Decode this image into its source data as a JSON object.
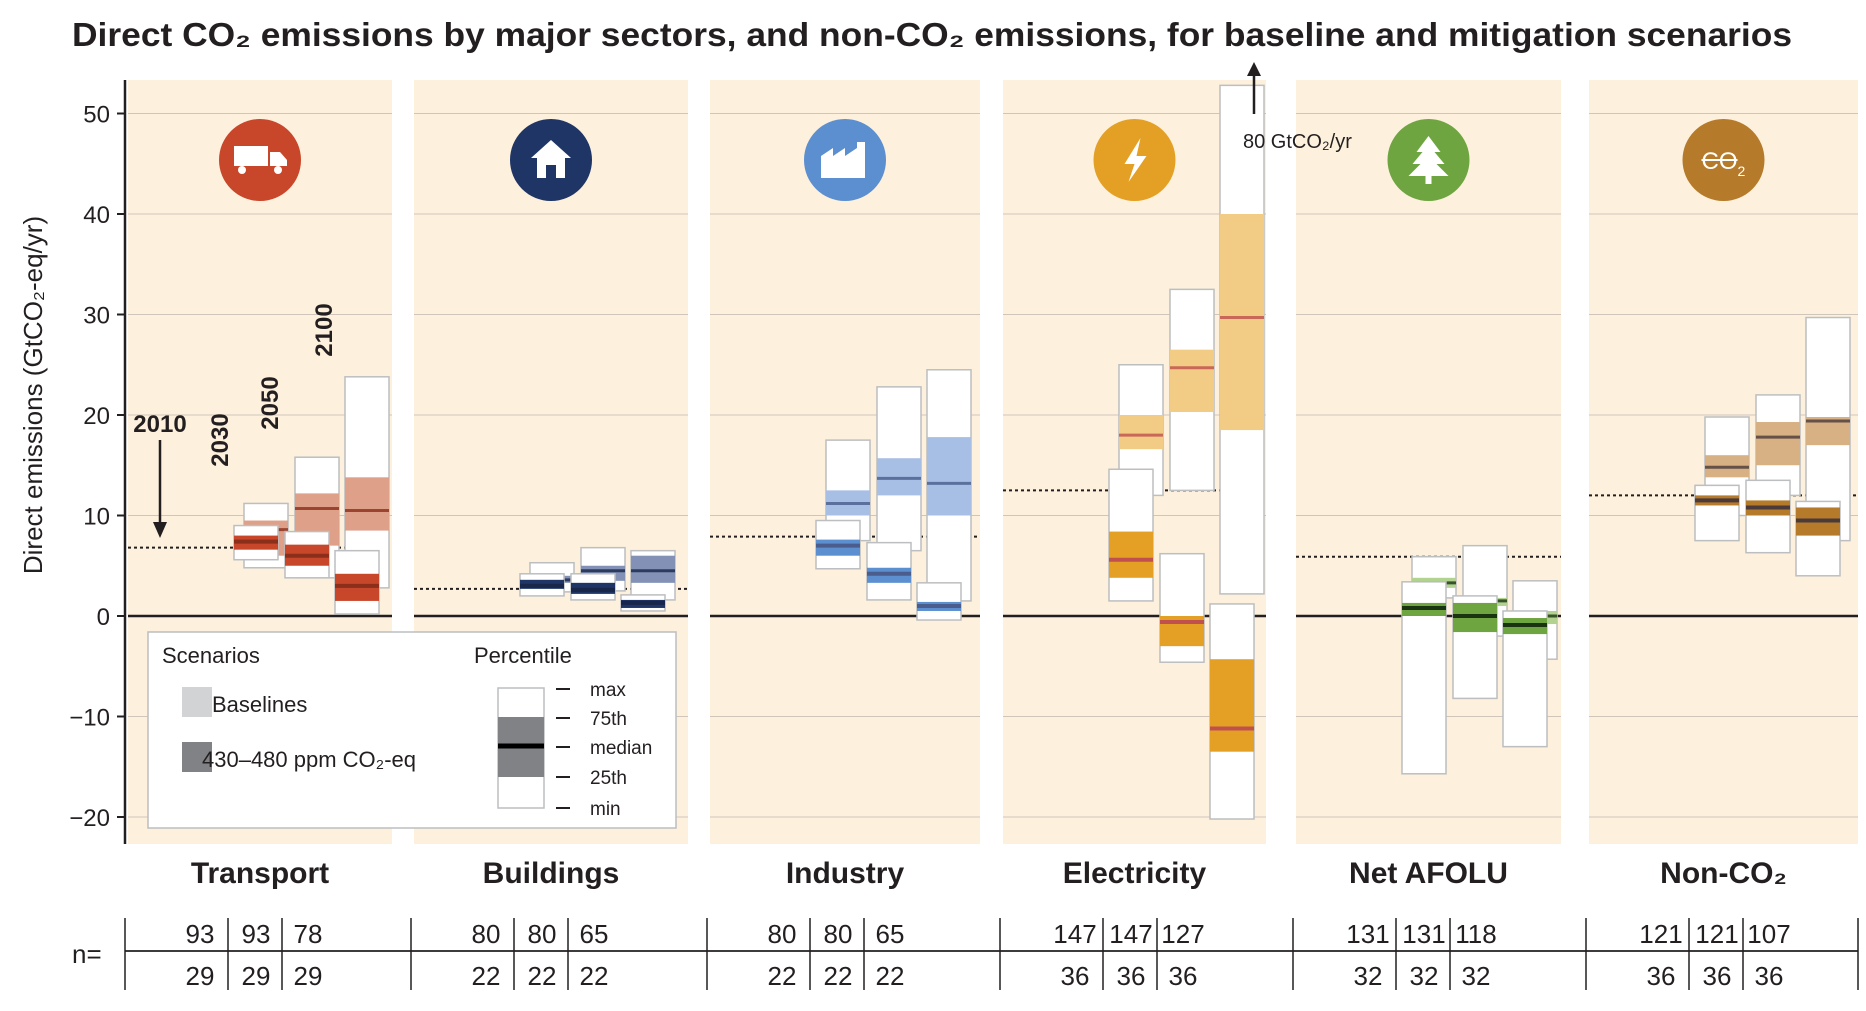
{
  "chart_data": {
    "type": "boxplot",
    "title": "Direct CO₂ emissions by major sectors, and non-CO₂ emissions, for baseline and mitigation scenarios",
    "ylabel": "Direct emissions (GtCO₂-eq/yr)",
    "ylim": [
      -22,
      53
    ],
    "yticks": [
      50,
      40,
      30,
      20,
      10,
      0,
      -10,
      -20
    ],
    "years": [
      "2010",
      "2030",
      "2050",
      "2100"
    ],
    "off_scale_note": "80 GtCO₂/yr",
    "n_label": "n=",
    "sectors": [
      {
        "name": "Transport",
        "icon": "truck-icon",
        "color": "#c8462a",
        "light": "#dfa08a",
        "line": "#8b2e1a",
        "y2010": 6.8,
        "n_baseline": [
          "93",
          "93",
          "78"
        ],
        "n_mitigation": [
          "29",
          "29",
          "29"
        ],
        "baseline": [
          [
            4.8,
            6.0,
            8.6,
            9.5,
            11.2
          ],
          [
            3.8,
            7.0,
            10.7,
            12.2,
            15.8
          ],
          [
            2.8,
            8.5,
            10.5,
            13.8,
            23.8
          ]
        ],
        "mitigation": [
          [
            5.6,
            6.6,
            7.4,
            8.0,
            9.0
          ],
          [
            3.8,
            5.0,
            6.0,
            7.1,
            8.4
          ],
          [
            0.2,
            1.5,
            3.0,
            4.2,
            6.5
          ]
        ]
      },
      {
        "name": "Buildings",
        "icon": "house-icon",
        "color": "#1e3565",
        "light": "#8291b5",
        "line": "#18264a",
        "y2010": 2.7,
        "n_baseline": [
          "80",
          "80",
          "65"
        ],
        "n_mitigation": [
          "22",
          "22",
          "22"
        ],
        "baseline": [
          [
            2.4,
            3.3,
            3.6,
            4.0,
            5.3
          ],
          [
            2.5,
            3.5,
            4.5,
            5.0,
            6.8
          ],
          [
            1.6,
            3.3,
            4.5,
            6.0,
            6.5
          ]
        ],
        "mitigation": [
          [
            2.0,
            2.7,
            3.0,
            3.6,
            4.2
          ],
          [
            1.6,
            2.2,
            2.6,
            3.3,
            4.2
          ],
          [
            0.5,
            0.8,
            1.3,
            1.6,
            2.1
          ]
        ]
      },
      {
        "name": "Industry",
        "icon": "factory-icon",
        "color": "#5b8fd0",
        "light": "#a7bfe4",
        "line": "#4a5d8c",
        "y2010": 7.9,
        "n_baseline": [
          "80",
          "80",
          "65"
        ],
        "n_mitigation": [
          "22",
          "22",
          "22"
        ],
        "baseline": [
          [
            7.5,
            10.0,
            11.2,
            12.5,
            17.5
          ],
          [
            6.5,
            12.0,
            13.7,
            15.7,
            22.8
          ],
          [
            1.5,
            10.0,
            13.2,
            17.8,
            24.5
          ]
        ],
        "mitigation": [
          [
            4.7,
            6.0,
            7.0,
            7.6,
            9.5
          ],
          [
            1.6,
            3.3,
            4.2,
            4.8,
            7.3
          ],
          [
            -0.4,
            0.5,
            1.0,
            1.4,
            3.3
          ]
        ]
      },
      {
        "name": "Electricity",
        "icon": "lightning-icon",
        "color": "#e3a025",
        "light": "#f2cc85",
        "line": "#c0504d",
        "y2010": 12.5,
        "n_baseline": [
          "147",
          "147",
          "127"
        ],
        "n_mitigation": [
          "36",
          "36",
          "36"
        ],
        "baseline": [
          [
            12.0,
            16.6,
            18.0,
            20.0,
            25.0
          ],
          [
            12.5,
            20.3,
            24.7,
            26.5,
            32.5
          ],
          [
            2.2,
            18.5,
            29.7,
            40.0,
            80.0
          ]
        ],
        "mitigation": [
          [
            1.5,
            3.8,
            5.6,
            8.4,
            14.6
          ],
          [
            -4.6,
            -3.0,
            -0.6,
            0.0,
            6.2
          ],
          [
            -20.2,
            -13.5,
            -11.2,
            -4.3,
            1.2
          ]
        ]
      },
      {
        "name": "Net AFOLU",
        "icon": "tree-icon",
        "color": "#6ea541",
        "light": "#b2d38f",
        "line": "#1a3310",
        "y2010": 5.9,
        "n_baseline": [
          "131",
          "131",
          "118"
        ],
        "n_mitigation": [
          "32",
          "32",
          "32"
        ],
        "baseline": [
          [
            1.8,
            2.8,
            3.3,
            3.8,
            5.9
          ],
          [
            -2.0,
            1.0,
            1.5,
            1.8,
            7.0
          ],
          [
            -4.3,
            -0.8,
            0.0,
            0.5,
            3.5
          ]
        ],
        "mitigation": [
          [
            -15.7,
            0.0,
            0.8,
            1.3,
            3.4
          ],
          [
            -8.2,
            -1.6,
            0.0,
            1.3,
            2.0
          ],
          [
            -13.0,
            -1.8,
            -0.9,
            -0.2,
            0.5
          ]
        ]
      },
      {
        "name": "Non-CO₂",
        "icon": "non-co2-icon",
        "color": "#b57b2a",
        "light": "#d7b083",
        "line": "#4b3a3a",
        "y2010": 12.0,
        "n_baseline": [
          "121",
          "121",
          "107"
        ],
        "n_mitigation": [
          "36",
          "36",
          "36"
        ],
        "baseline": [
          [
            10.0,
            13.8,
            14.8,
            16.0,
            19.8
          ],
          [
            12.0,
            15.0,
            17.8,
            19.3,
            22.0
          ],
          [
            7.5,
            17.0,
            19.4,
            19.8,
            29.7
          ]
        ],
        "mitigation": [
          [
            7.5,
            11.0,
            11.5,
            12.0,
            13.0
          ],
          [
            6.3,
            10.0,
            10.8,
            11.5,
            13.5
          ],
          [
            4.0,
            8.0,
            9.5,
            10.8,
            11.4
          ]
        ]
      }
    ],
    "legend": {
      "scenarios_title": "Scenarios",
      "baselines_label": "Baselines",
      "mitigation_label": "430–480 ppm CO₂-eq",
      "percentile_title": "Percentile",
      "percentiles": [
        "max",
        "75th",
        "median",
        "25th",
        "min"
      ]
    },
    "colors": {
      "panel": "#fdf1dd",
      "grid": "#cfc5ba",
      "axis": "#231f20",
      "legend_light": "#d1d3d4",
      "legend_dark": "#808285"
    }
  }
}
